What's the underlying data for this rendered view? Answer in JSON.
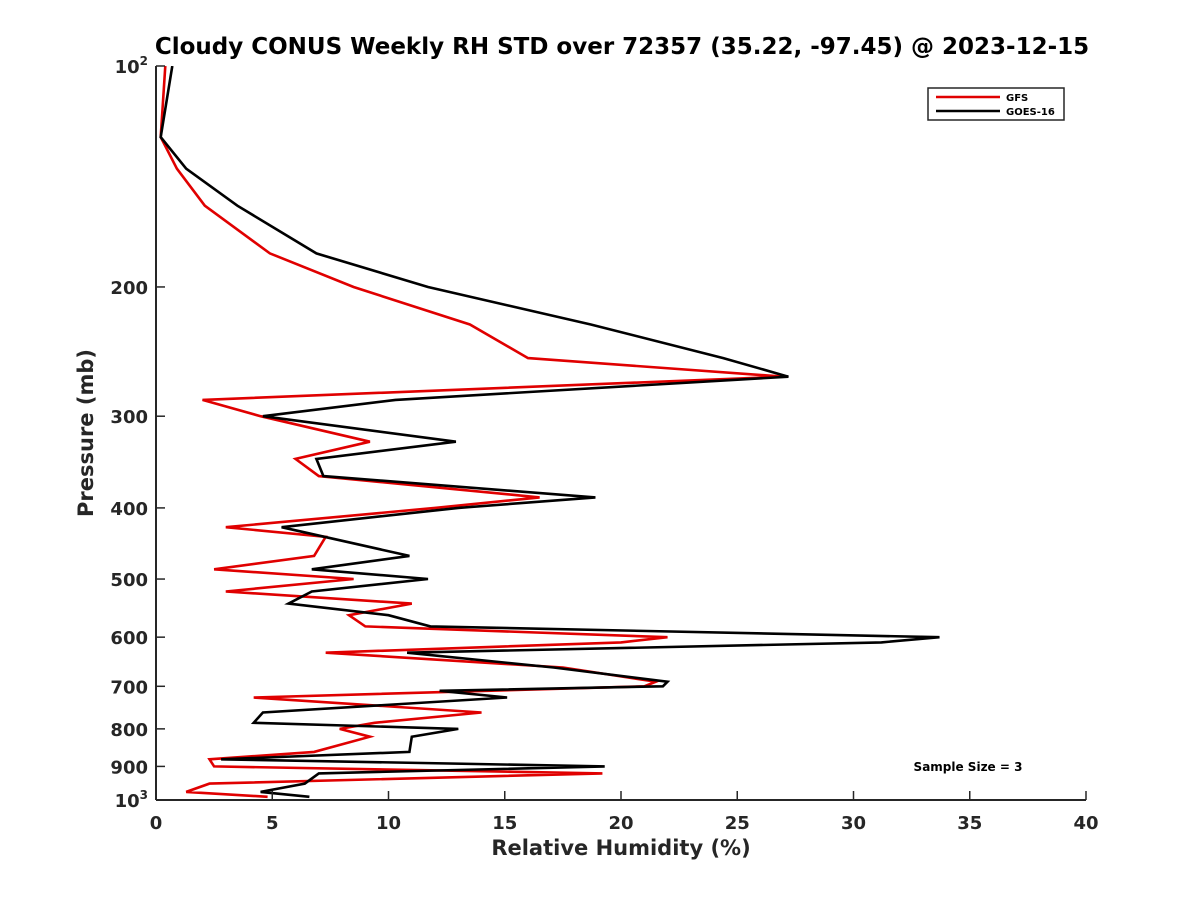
{
  "chart_data": {
    "type": "line",
    "title": "Cloudy CONUS Weekly RH STD over 72357 (35.22, -97.45) @ 2023-12-15",
    "xlabel": "Relative Humidity (%)",
    "ylabel": "Pressure (mb)",
    "xlim": [
      0,
      40
    ],
    "ylim": [
      100,
      1000
    ],
    "y_scale": "log",
    "y_reversed": true,
    "x_ticks": [
      "0",
      "5",
      "10",
      "15",
      "20",
      "25",
      "30",
      "35",
      "40"
    ],
    "x_tick_values": [
      0,
      5,
      10,
      15,
      20,
      25,
      30,
      35,
      40
    ],
    "y_ticks": [
      {
        "value": 100,
        "base": "10",
        "exp": "2"
      },
      {
        "value": 200,
        "base": "200",
        "exp": ""
      },
      {
        "value": 300,
        "base": "300",
        "exp": ""
      },
      {
        "value": 400,
        "base": "400",
        "exp": ""
      },
      {
        "value": 500,
        "base": "500",
        "exp": ""
      },
      {
        "value": 600,
        "base": "600",
        "exp": ""
      },
      {
        "value": 700,
        "base": "700",
        "exp": ""
      },
      {
        "value": 800,
        "base": "800",
        "exp": ""
      },
      {
        "value": 900,
        "base": "900",
        "exp": ""
      },
      {
        "value": 1000,
        "base": "10",
        "exp": "3"
      }
    ],
    "grid": false,
    "legend_position": "top-right",
    "annotation": "Sample Size = 3",
    "series": [
      {
        "name": "GFS",
        "color": "#e00000",
        "points": [
          [
            0.4,
            100
          ],
          [
            0.2,
            125
          ],
          [
            0.9,
            138
          ],
          [
            2.1,
            155
          ],
          [
            4.9,
            180
          ],
          [
            8.5,
            200
          ],
          [
            13.5,
            225
          ],
          [
            16.0,
            250
          ],
          [
            27.0,
            265
          ],
          [
            2.0,
            285
          ],
          [
            4.5,
            300
          ],
          [
            9.2,
            325
          ],
          [
            6.0,
            343
          ],
          [
            7.0,
            362
          ],
          [
            16.5,
            387
          ],
          [
            12.0,
            400
          ],
          [
            3.0,
            425
          ],
          [
            7.3,
            438
          ],
          [
            6.8,
            465
          ],
          [
            2.5,
            485
          ],
          [
            8.5,
            500
          ],
          [
            3.0,
            520
          ],
          [
            11.0,
            540
          ],
          [
            8.3,
            560
          ],
          [
            9.0,
            580
          ],
          [
            22.0,
            600
          ],
          [
            20.0,
            610
          ],
          [
            7.3,
            630
          ],
          [
            17.5,
            660
          ],
          [
            21.5,
            690
          ],
          [
            21.0,
            700
          ],
          [
            4.2,
            725
          ],
          [
            14.0,
            760
          ],
          [
            9.4,
            785
          ],
          [
            7.9,
            800
          ],
          [
            9.2,
            820
          ],
          [
            6.8,
            860
          ],
          [
            2.3,
            880
          ],
          [
            2.5,
            900
          ],
          [
            19.2,
            920
          ],
          [
            2.3,
            950
          ],
          [
            1.3,
            975
          ],
          [
            4.8,
            990
          ]
        ]
      },
      {
        "name": "GOES-16",
        "color": "#000000",
        "points": [
          [
            0.7,
            100
          ],
          [
            0.2,
            125
          ],
          [
            1.3,
            138
          ],
          [
            3.5,
            155
          ],
          [
            6.9,
            180
          ],
          [
            11.7,
            200
          ],
          [
            18.7,
            225
          ],
          [
            24.4,
            250
          ],
          [
            27.2,
            265
          ],
          [
            10.3,
            285
          ],
          [
            4.6,
            300
          ],
          [
            12.9,
            325
          ],
          [
            6.9,
            343
          ],
          [
            7.2,
            362
          ],
          [
            18.9,
            387
          ],
          [
            13.0,
            400
          ],
          [
            5.4,
            425
          ],
          [
            10.9,
            465
          ],
          [
            6.7,
            485
          ],
          [
            11.7,
            500
          ],
          [
            6.7,
            520
          ],
          [
            5.7,
            540
          ],
          [
            10.0,
            560
          ],
          [
            11.8,
            580
          ],
          [
            33.7,
            600
          ],
          [
            31.2,
            610
          ],
          [
            10.8,
            630
          ],
          [
            17.1,
            660
          ],
          [
            22.0,
            690
          ],
          [
            21.8,
            700
          ],
          [
            12.2,
            710
          ],
          [
            15.1,
            725
          ],
          [
            4.6,
            760
          ],
          [
            4.2,
            785
          ],
          [
            13.0,
            800
          ],
          [
            11.0,
            820
          ],
          [
            10.9,
            860
          ],
          [
            2.8,
            880
          ],
          [
            19.3,
            900
          ],
          [
            7.0,
            920
          ],
          [
            6.4,
            950
          ],
          [
            4.5,
            975
          ],
          [
            6.6,
            990
          ]
        ]
      }
    ]
  }
}
